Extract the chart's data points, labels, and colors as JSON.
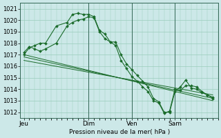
{
  "background_color": "#cce8e8",
  "grid_color": "#99ccbb",
  "line_color": "#1a6b2a",
  "ylabel_text": "Pression niveau de la mer( hPa )",
  "xtick_labels": [
    "Jeu",
    "Dim",
    "Ven",
    "Sam"
  ],
  "xtick_positions": [
    0,
    36,
    60,
    84
  ],
  "xlim": [
    -2,
    108
  ],
  "ylim": [
    1011.5,
    1021.5
  ],
  "yticks": [
    1012,
    1013,
    1014,
    1015,
    1016,
    1017,
    1018,
    1019,
    1020,
    1021
  ],
  "vlines": [
    36,
    60,
    84
  ],
  "series1": {
    "x": [
      0,
      3,
      6,
      9,
      12,
      18,
      24,
      27,
      30,
      33,
      36,
      39,
      42,
      45,
      48,
      51,
      54,
      57,
      60,
      63,
      66,
      69,
      72,
      75,
      78,
      81,
      84,
      87,
      90,
      93,
      96,
      99,
      102,
      105
    ],
    "y": [
      1017.0,
      1017.6,
      1017.8,
      1018.0,
      1018.0,
      1019.5,
      1019.8,
      1020.5,
      1020.6,
      1020.5,
      1020.5,
      1020.3,
      1019.1,
      1018.8,
      1018.1,
      1018.1,
      1017.0,
      1016.2,
      1015.7,
      1015.2,
      1014.7,
      1014.2,
      1013.2,
      1012.9,
      1012.0,
      1012.0,
      1013.8,
      1014.2,
      1014.8,
      1014.1,
      1014.0,
      1013.7,
      1013.5,
      1013.3
    ]
  },
  "series2": {
    "x": [
      0,
      3,
      6,
      9,
      12,
      18,
      24,
      27,
      30,
      33,
      36,
      39,
      42,
      45,
      48,
      51,
      54,
      57,
      60,
      63,
      66,
      69,
      72,
      75,
      78,
      81,
      84,
      87,
      90,
      93,
      96,
      99,
      102,
      105
    ],
    "y": [
      1017.2,
      1017.7,
      1017.5,
      1017.3,
      1017.5,
      1018.0,
      1019.5,
      1019.8,
      1020.0,
      1020.1,
      1020.3,
      1020.2,
      1019.0,
      1018.4,
      1018.1,
      1017.8,
      1016.5,
      1015.8,
      1015.1,
      1014.7,
      1014.2,
      1013.8,
      1013.0,
      1012.8,
      1011.9,
      1012.1,
      1014.0,
      1013.9,
      1014.3,
      1014.3,
      1014.2,
      1013.8,
      1013.5,
      1013.2
    ]
  },
  "line3": {
    "x": [
      0,
      105
    ],
    "y": [
      1017.0,
      1013.0
    ]
  },
  "line4": {
    "x": [
      0,
      105
    ],
    "y": [
      1016.8,
      1013.2
    ]
  },
  "line5": {
    "x": [
      0,
      105
    ],
    "y": [
      1016.5,
      1013.5
    ]
  }
}
